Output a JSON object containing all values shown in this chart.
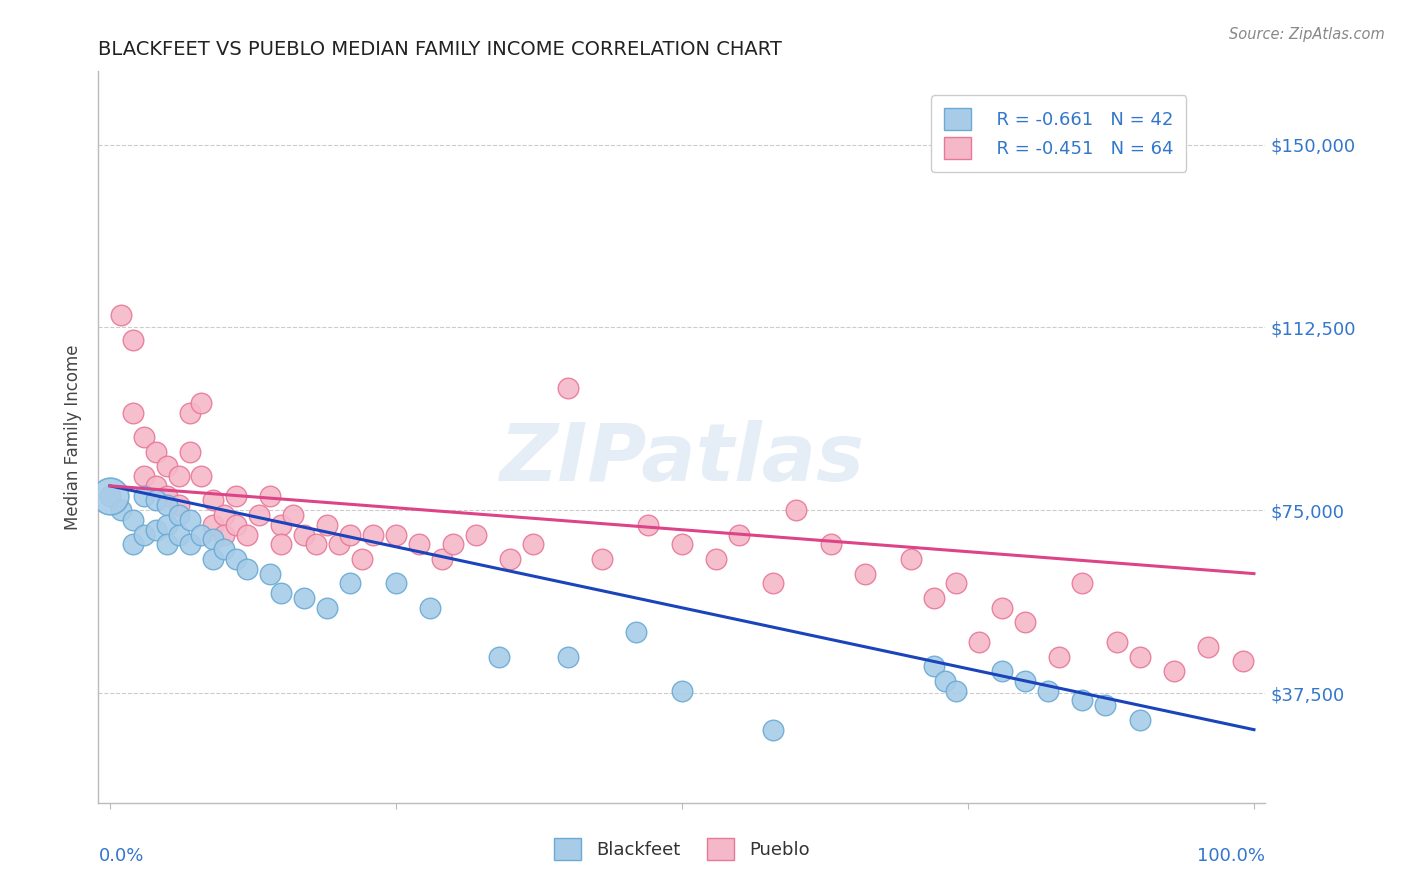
{
  "title": "BLACKFEET VS PUEBLO MEDIAN FAMILY INCOME CORRELATION CHART",
  "source_text": "Source: ZipAtlas.com",
  "ylabel": "Median Family Income",
  "xlim": [
    -0.01,
    1.01
  ],
  "ylim": [
    15000,
    165000
  ],
  "yticks": [
    37500,
    75000,
    112500,
    150000
  ],
  "ytick_labels": [
    "$37,500",
    "$75,000",
    "$112,500",
    "$150,000"
  ],
  "background_color": "#ffffff",
  "grid_color": "#cccccc",
  "blackfeet_color": "#a8cce8",
  "blackfeet_edge_color": "#6aaad4",
  "pueblo_color": "#f5b8c8",
  "pueblo_edge_color": "#e87898",
  "blue_line_color": "#1a44bb",
  "pink_line_color": "#dd4488",
  "legend_r_blackfeet": "R = -0.661",
  "legend_n_blackfeet": "N = 42",
  "legend_r_pueblo": "R = -0.451",
  "legend_n_pueblo": "N = 64",
  "blue_line_x0": 0.0,
  "blue_line_y0": 80000,
  "blue_line_x1": 1.0,
  "blue_line_y1": 30000,
  "pink_line_x0": 0.0,
  "pink_line_y0": 80000,
  "pink_line_x1": 1.0,
  "pink_line_y1": 62000,
  "blackfeet_x": [
    0.0,
    0.01,
    0.02,
    0.02,
    0.03,
    0.03,
    0.04,
    0.04,
    0.05,
    0.05,
    0.05,
    0.06,
    0.06,
    0.07,
    0.07,
    0.08,
    0.09,
    0.09,
    0.1,
    0.11,
    0.12,
    0.14,
    0.15,
    0.17,
    0.19,
    0.21,
    0.25,
    0.28,
    0.34,
    0.4,
    0.46,
    0.5,
    0.58,
    0.72,
    0.73,
    0.74,
    0.78,
    0.8,
    0.82,
    0.85,
    0.87,
    0.9
  ],
  "blackfeet_y": [
    78000,
    75000,
    73000,
    68000,
    78000,
    70000,
    77000,
    71000,
    76000,
    72000,
    68000,
    74000,
    70000,
    73000,
    68000,
    70000,
    69000,
    65000,
    67000,
    65000,
    63000,
    62000,
    58000,
    57000,
    55000,
    60000,
    60000,
    55000,
    45000,
    45000,
    50000,
    38000,
    30000,
    43000,
    40000,
    38000,
    42000,
    40000,
    38000,
    36000,
    35000,
    32000
  ],
  "pueblo_x": [
    0.01,
    0.02,
    0.02,
    0.03,
    0.03,
    0.04,
    0.04,
    0.05,
    0.05,
    0.06,
    0.06,
    0.07,
    0.07,
    0.08,
    0.08,
    0.09,
    0.09,
    0.1,
    0.1,
    0.11,
    0.11,
    0.12,
    0.13,
    0.14,
    0.15,
    0.15,
    0.16,
    0.17,
    0.18,
    0.19,
    0.2,
    0.21,
    0.22,
    0.23,
    0.25,
    0.27,
    0.29,
    0.3,
    0.32,
    0.35,
    0.37,
    0.4,
    0.43,
    0.47,
    0.5,
    0.53,
    0.55,
    0.58,
    0.6,
    0.63,
    0.66,
    0.7,
    0.72,
    0.74,
    0.76,
    0.78,
    0.8,
    0.83,
    0.85,
    0.88,
    0.9,
    0.93,
    0.96,
    0.99
  ],
  "pueblo_y": [
    115000,
    110000,
    95000,
    90000,
    82000,
    87000,
    80000,
    84000,
    78000,
    82000,
    76000,
    95000,
    87000,
    82000,
    97000,
    77000,
    72000,
    74000,
    70000,
    78000,
    72000,
    70000,
    74000,
    78000,
    72000,
    68000,
    74000,
    70000,
    68000,
    72000,
    68000,
    70000,
    65000,
    70000,
    70000,
    68000,
    65000,
    68000,
    70000,
    65000,
    68000,
    100000,
    65000,
    72000,
    68000,
    65000,
    70000,
    60000,
    75000,
    68000,
    62000,
    65000,
    57000,
    60000,
    48000,
    55000,
    52000,
    45000,
    60000,
    48000,
    45000,
    42000,
    47000,
    44000
  ]
}
